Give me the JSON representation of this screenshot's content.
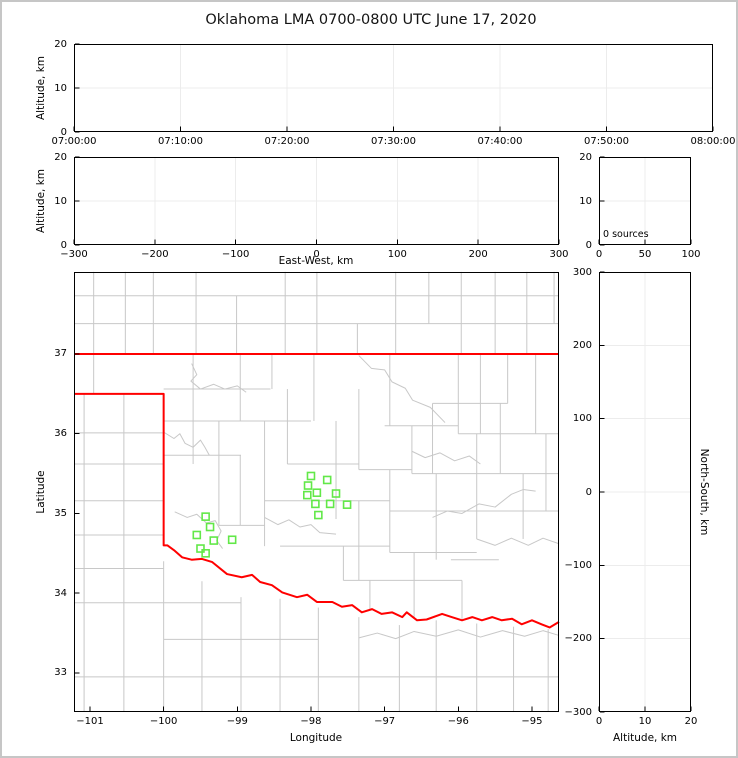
{
  "window": {
    "background": "#ffffff",
    "border_color": "#c6c6c6"
  },
  "title": "Oklahoma LMA 0700-0800 UTC June 17, 2020",
  "colors": {
    "axis": "#000000",
    "grid": "#ececec",
    "county_line": "#c8c8c8",
    "state_border": "#ff0000",
    "station_marker": "#62e848",
    "text": "#000000"
  },
  "chart_data": {
    "time_height": {
      "type": "scatter",
      "xlabel": "",
      "ylabel": "Altitude, km",
      "x_tick_values": [
        0,
        600,
        1200,
        1800,
        2400,
        3000,
        3600
      ],
      "x_tick_labels": [
        "07:00:00",
        "07:10:00",
        "07:20:00",
        "07:30:00",
        "07:40:00",
        "07:50:00",
        "08:00:00"
      ],
      "y_tick_values": [
        0,
        10,
        20
      ],
      "y_tick_labels": [
        "0",
        "10",
        "20"
      ],
      "xlim": [
        0,
        3600
      ],
      "ylim": [
        0,
        20
      ],
      "grid": true,
      "points": []
    },
    "ew_height": {
      "type": "scatter",
      "xlabel": "East-West, km",
      "ylabel": "Altitude, km",
      "x_tick_values": [
        -300,
        -200,
        -100,
        0,
        100,
        200,
        300
      ],
      "x_tick_labels": [
        "−300",
        "−200",
        "−100",
        "0",
        "100",
        "200",
        "300"
      ],
      "y_tick_values": [
        0,
        10,
        20
      ],
      "y_tick_labels": [
        "0",
        "10",
        "20"
      ],
      "xlim": [
        -300,
        300
      ],
      "ylim": [
        0,
        20
      ],
      "grid": true,
      "points": []
    },
    "alt_histogram": {
      "type": "line",
      "annotation": "0 sources",
      "xlabel": "",
      "ylabel": "",
      "x_tick_values": [
        0,
        50,
        100
      ],
      "x_tick_labels": [
        "0",
        "50",
        "100"
      ],
      "y_tick_values": [
        0,
        10,
        20
      ],
      "y_tick_labels": [
        "0",
        "10",
        "20"
      ],
      "xlim": [
        0,
        100
      ],
      "ylim": [
        0,
        20
      ],
      "grid": true,
      "points": []
    },
    "ns_height": {
      "type": "scatter",
      "xlabel": "Altitude, km",
      "ylabel": "North-South, km",
      "x_tick_values": [
        0,
        10,
        20
      ],
      "x_tick_labels": [
        "0",
        "10",
        "20"
      ],
      "y_tick_values": [
        -300,
        -200,
        -100,
        0,
        100,
        200,
        300
      ],
      "y_tick_labels": [
        "−300",
        "−200",
        "−100",
        "0",
        "100",
        "200",
        "300"
      ],
      "xlim": [
        0,
        20
      ],
      "ylim": [
        -300,
        300
      ],
      "grid": true,
      "points": []
    },
    "map": {
      "type": "map",
      "xlabel": "Longitude",
      "ylabel": "Latitude",
      "x_tick_values": [
        -101,
        -100,
        -99,
        -98,
        -97,
        -96,
        -95
      ],
      "x_tick_labels": [
        "−101",
        "−100",
        "−99",
        "−98",
        "−97",
        "−96",
        "−95"
      ],
      "y_tick_values": [
        33,
        34,
        35,
        36,
        37
      ],
      "y_tick_labels": [
        "33",
        "34",
        "35",
        "36",
        "37"
      ],
      "xlim": [
        -101.217,
        -94.633
      ],
      "ylim": [
        32.51,
        38.028
      ],
      "grid": false,
      "stations": [
        [
          -99.43,
          34.96
        ],
        [
          -99.37,
          34.83
        ],
        [
          -99.55,
          34.73
        ],
        [
          -99.32,
          34.66
        ],
        [
          -99.5,
          34.56
        ],
        [
          -99.43,
          34.5
        ],
        [
          -99.07,
          34.67
        ],
        [
          -98.0,
          35.47
        ],
        [
          -97.78,
          35.42
        ],
        [
          -98.04,
          35.35
        ],
        [
          -97.92,
          35.26
        ],
        [
          -98.05,
          35.23
        ],
        [
          -97.66,
          35.25
        ],
        [
          -97.94,
          35.12
        ],
        [
          -97.74,
          35.12
        ],
        [
          -97.51,
          35.11
        ],
        [
          -97.9,
          34.98
        ]
      ],
      "state_border": [
        [
          -101.217,
          37,
          -94.633,
          37
        ],
        [
          -101.217,
          36.5,
          -100.0,
          36.5,
          -100.0,
          34.6,
          -99.95,
          34.6,
          -99.86,
          34.54,
          -99.75,
          34.45,
          -99.62,
          34.42,
          -99.48,
          34.43,
          -99.34,
          34.39,
          -99.14,
          34.24,
          -98.94,
          34.2,
          -98.8,
          34.23,
          -98.69,
          34.14,
          -98.53,
          34.1,
          -98.39,
          34.01,
          -98.19,
          33.95,
          -98.05,
          33.98,
          -97.92,
          33.89,
          -97.71,
          33.89,
          -97.58,
          33.83,
          -97.44,
          33.85,
          -97.31,
          33.76,
          -97.17,
          33.8,
          -97.04,
          33.74,
          -96.9,
          33.76,
          -96.76,
          33.7,
          -96.7,
          33.76,
          -96.56,
          33.66,
          -96.43,
          33.67,
          -96.22,
          33.74,
          -96.09,
          33.7,
          -95.95,
          33.66,
          -95.81,
          33.7,
          -95.68,
          33.66,
          -95.54,
          33.7,
          -95.41,
          33.66,
          -95.27,
          33.68,
          -95.14,
          33.61,
          -95.0,
          33.66,
          -94.87,
          33.61,
          -94.76,
          33.57,
          -94.633,
          33.64
        ]
      ],
      "county_lines": [
        [
          -100.95,
          36.5,
          -100.95,
          38.03
        ],
        [
          -100.52,
          37,
          -100.52,
          38.03
        ],
        [
          -100.14,
          37,
          -100.14,
          38.03
        ],
        [
          -99.56,
          37,
          -99.56,
          38.03
        ],
        [
          -99.01,
          37,
          -99.01,
          37.73
        ],
        [
          -98.35,
          37,
          -98.35,
          38.03
        ],
        [
          -97.92,
          37,
          -97.92,
          38.03
        ],
        [
          -97.37,
          37,
          -97.37,
          37.38
        ],
        [
          -96.85,
          37,
          -96.85,
          38.03
        ],
        [
          -96.4,
          37.38,
          -96.4,
          38.03
        ],
        [
          -95.96,
          37,
          -95.96,
          38.03
        ],
        [
          -95.5,
          37,
          -95.5,
          38.03
        ],
        [
          -95.07,
          37,
          -95.07,
          38.03
        ],
        [
          -94.7,
          37.38,
          -94.7,
          38.03
        ],
        [
          -101.217,
          37.38,
          -94.633,
          37.38
        ],
        [
          -101.217,
          37.73,
          -94.633,
          37.73
        ],
        [
          -101.08,
          36.5,
          -101.08,
          32.51
        ],
        [
          -100.54,
          36.5,
          -100.54,
          32.51
        ],
        [
          -101.217,
          36.01,
          -100.0,
          36.01
        ],
        [
          -101.217,
          35.62,
          -100.0,
          35.62
        ],
        [
          -101.217,
          35.16,
          -100.0,
          35.16
        ],
        [
          -101.217,
          34.73,
          -100.0,
          34.73
        ],
        [
          -101.217,
          34.31,
          -100.0,
          34.31
        ],
        [
          -101.217,
          33.88,
          -98.95,
          33.88
        ],
        [
          -101.217,
          32.95,
          -94.633,
          32.95
        ],
        [
          -100.0,
          34.4,
          -100.0,
          32.51
        ],
        [
          -99.48,
          34.15,
          -99.48,
          32.51
        ],
        [
          -98.95,
          33.95,
          -98.95,
          32.51
        ],
        [
          -98.42,
          33.93,
          -98.42,
          32.51
        ],
        [
          -97.9,
          33.82,
          -97.9,
          32.51
        ],
        [
          -97.35,
          33.7,
          -97.35,
          32.51
        ],
        [
          -96.8,
          33.6,
          -96.8,
          32.51
        ],
        [
          -96.3,
          33.66,
          -96.3,
          32.51
        ],
        [
          -95.75,
          33.62,
          -95.75,
          32.51
        ],
        [
          -95.25,
          33.58,
          -95.25,
          32.51
        ],
        [
          -94.78,
          33.55,
          -94.78,
          32.51
        ],
        [
          -100.0,
          33.42,
          -97.9,
          33.42
        ],
        [
          -100.0,
          36.56,
          -98.55,
          36.56
        ],
        [
          -100.0,
          36.16,
          -98.0,
          36.16
        ],
        [
          -97.0,
          36.1,
          -96.0,
          36.1
        ],
        [
          -96.35,
          36.38,
          -95.33,
          36.38
        ],
        [
          -96.0,
          36.0,
          -94.633,
          36.0
        ],
        [
          -100.0,
          35.73,
          -98.95,
          35.73
        ],
        [
          -98.32,
          35.62,
          -97.35,
          35.62
        ],
        [
          -97.35,
          35.55,
          -96.63,
          35.55
        ],
        [
          -96.63,
          35.5,
          -94.633,
          35.5
        ],
        [
          -98.63,
          35.16,
          -96.93,
          35.16
        ],
        [
          -96.93,
          35.03,
          -94.633,
          35.03
        ],
        [
          -98.42,
          34.59,
          -96.93,
          34.59
        ],
        [
          -96.93,
          34.51,
          -95.75,
          34.51
        ],
        [
          -97.56,
          34.16,
          -95.95,
          34.16
        ],
        [
          -99.25,
          34.85,
          -98.63,
          34.85
        ],
        [
          -96.1,
          34.42,
          -95.45,
          34.42
        ],
        [
          -99.6,
          37,
          -99.6,
          35.62
        ],
        [
          -99.25,
          36.16,
          -99.25,
          34.85
        ],
        [
          -98.96,
          37,
          -98.96,
          36.16
        ],
        [
          -98.96,
          35.73,
          -98.96,
          34.85
        ],
        [
          -98.63,
          36.16,
          -98.63,
          34.59
        ],
        [
          -98.53,
          37,
          -98.53,
          36.56
        ],
        [
          -98.32,
          36.56,
          -98.32,
          35.62
        ],
        [
          -97.96,
          37,
          -97.96,
          36.16
        ],
        [
          -97.66,
          36.16,
          -97.66,
          34.93
        ],
        [
          -97.35,
          36.56,
          -97.35,
          35.55
        ],
        [
          -97.35,
          35.16,
          -97.35,
          34.16
        ],
        [
          -96.93,
          37,
          -96.93,
          36.1
        ],
        [
          -96.93,
          35.55,
          -96.93,
          34.51
        ],
        [
          -96.63,
          36.1,
          -96.63,
          35.5
        ],
        [
          -96.35,
          36.38,
          -96.35,
          35.5
        ],
        [
          -96.3,
          35.5,
          -96.3,
          34.42
        ],
        [
          -96.0,
          37,
          -96.0,
          36.0
        ],
        [
          -95.7,
          37,
          -95.7,
          36.0
        ],
        [
          -95.33,
          37,
          -95.33,
          36.38
        ],
        [
          -94.95,
          37,
          -94.95,
          36.0
        ],
        [
          -95.75,
          36.0,
          -95.75,
          34.68
        ],
        [
          -95.43,
          36.38,
          -95.43,
          35.5
        ],
        [
          -95.12,
          35.5,
          -95.12,
          34.68
        ],
        [
          -94.81,
          36.0,
          -94.81,
          35.03
        ],
        [
          -97.56,
          34.59,
          -97.56,
          34.16
        ],
        [
          -97.2,
          34.16,
          -97.2,
          33.8
        ],
        [
          -96.6,
          34.51,
          -96.6,
          33.68
        ],
        [
          -95.95,
          34.16,
          -95.95,
          33.66
        ],
        [
          -99.62,
          36.88,
          -99.55,
          36.74,
          -99.63,
          36.66,
          -99.5,
          36.56,
          -99.32,
          36.62,
          -99.17,
          36.56,
          -99.0,
          36.6,
          -98.88,
          36.52
        ],
        [
          -97.35,
          36.98,
          -97.18,
          36.82,
          -97.0,
          36.8,
          -96.9,
          36.65,
          -96.72,
          36.57,
          -96.62,
          36.42,
          -96.38,
          36.33,
          -96.18,
          36.14
        ],
        [
          -100.0,
          36.02,
          -99.86,
          35.94,
          -99.78,
          36.0,
          -99.71,
          35.88,
          -99.6,
          35.83,
          -99.5,
          35.92,
          -99.44,
          35.83,
          -99.38,
          35.73
        ],
        [
          -99.85,
          35.02,
          -99.68,
          34.95,
          -99.55,
          34.99,
          -99.42,
          34.88,
          -99.3,
          34.91,
          -99.22,
          34.78,
          -99.28,
          34.66,
          -99.2,
          34.56
        ],
        [
          -98.63,
          34.95,
          -98.45,
          34.86,
          -98.3,
          34.92,
          -98.15,
          34.83,
          -98.0,
          34.86,
          -97.88,
          34.76,
          -97.66,
          34.74
        ],
        [
          -96.35,
          34.95,
          -96.15,
          35.03,
          -95.95,
          35.0,
          -95.72,
          35.12,
          -95.5,
          35.08,
          -95.28,
          35.24,
          -95.12,
          35.3,
          -94.95,
          35.28
        ],
        [
          -95.75,
          34.68,
          -95.5,
          34.6,
          -95.28,
          34.69,
          -95.05,
          34.6,
          -94.85,
          34.69,
          -94.633,
          34.62
        ],
        [
          -97.35,
          33.44,
          -97.1,
          33.5,
          -96.85,
          33.43,
          -96.6,
          33.52,
          -96.3,
          33.46,
          -96.0,
          33.54,
          -95.7,
          33.45,
          -95.4,
          33.53,
          -95.1,
          33.46,
          -94.85,
          33.53,
          -94.633,
          33.47
        ],
        [
          -96.63,
          35.78,
          -96.45,
          35.7,
          -96.25,
          35.76,
          -96.05,
          35.66,
          -95.85,
          35.72,
          -95.7,
          35.62
        ]
      ]
    }
  }
}
